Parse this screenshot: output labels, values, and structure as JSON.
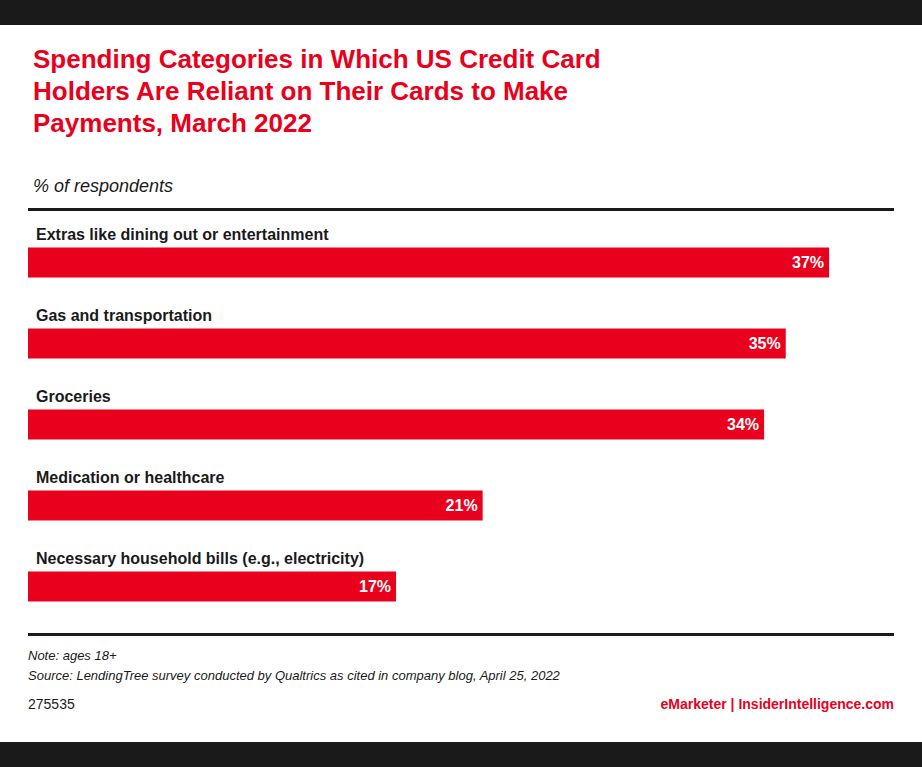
{
  "chart_data": {
    "type": "bar",
    "orientation": "horizontal",
    "title": "Spending Categories in Which US Credit Card\nHolders Are Reliant on Their Cards to Make\nPayments, March 2022",
    "subtitle": "% of respondents",
    "categories": [
      "Extras like dining out or entertainment",
      "Gas and transportation",
      "Groceries",
      "Medication or healthcare",
      "Necessary household bills (e.g., electricity)"
    ],
    "values": [
      37,
      35,
      34,
      21,
      17
    ],
    "value_labels": [
      "37%",
      "35%",
      "34%",
      "21%",
      "17%"
    ],
    "data_labels": true,
    "color": "#E8001C",
    "xlim": [
      0,
      40
    ],
    "grid": false,
    "tick_labels": "y",
    "annotations": [
      "Note: ages 18+\nSource: LendingTree survey conducted by Qualtrics as cited in company blog, April 25, 2022",
      "275535",
      "eMarketer | InsiderIntelligence.com"
    ]
  }
}
